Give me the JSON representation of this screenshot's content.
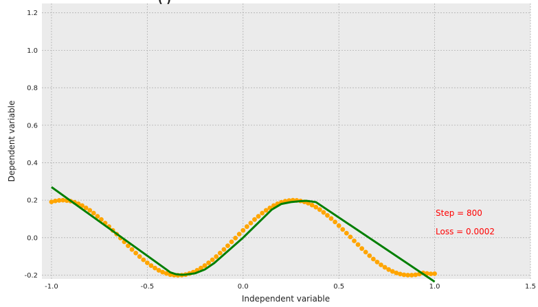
{
  "chart_data": {
    "type": "scatter",
    "title_fragment": "(     )",
    "xlabel": "Independent variable",
    "ylabel": "Dependent variable",
    "xlim": [
      -1.05,
      1.5
    ],
    "ylim": [
      -0.22,
      1.25
    ],
    "xticks": [
      "-1.0",
      "-0.5",
      "0.0",
      "0.5",
      "1.0",
      "1.5"
    ],
    "yticks": [
      "-0.2",
      "0.0",
      "0.2",
      "0.4",
      "0.6",
      "0.8",
      "1.0",
      "1.2"
    ],
    "grid": true,
    "colors": {
      "background": "#ebebeb",
      "scatter": "#ffa500",
      "line": "#007f00",
      "annotation": "#ff0000"
    },
    "series": [
      {
        "kind": "scatter",
        "points_x": [
          -1.0,
          -0.98,
          -0.96,
          -0.94,
          -0.92,
          -0.9,
          -0.88,
          -0.86,
          -0.84,
          -0.82,
          -0.8,
          -0.78,
          -0.76,
          -0.74,
          -0.72,
          -0.7,
          -0.68,
          -0.66,
          -0.64,
          -0.62,
          -0.6,
          -0.58,
          -0.56,
          -0.54,
          -0.52,
          -0.5,
          -0.48,
          -0.46,
          -0.44,
          -0.42,
          -0.4,
          -0.38,
          -0.36,
          -0.34,
          -0.32,
          -0.3,
          -0.28,
          -0.26,
          -0.24,
          -0.22,
          -0.2,
          -0.18,
          -0.16,
          -0.14,
          -0.12,
          -0.1,
          -0.08,
          -0.06,
          -0.04,
          -0.02,
          0.0,
          0.02,
          0.04,
          0.06,
          0.08,
          0.1,
          0.12,
          0.14,
          0.16,
          0.18,
          0.2,
          0.22,
          0.24,
          0.26,
          0.28,
          0.3,
          0.32,
          0.34,
          0.36,
          0.38,
          0.4,
          0.42,
          0.44,
          0.46,
          0.48,
          0.5,
          0.52,
          0.54,
          0.56,
          0.58,
          0.6,
          0.62,
          0.64,
          0.66,
          0.68,
          0.7,
          0.72,
          0.74,
          0.76,
          0.78,
          0.8,
          0.82,
          0.84,
          0.86,
          0.88,
          0.9,
          0.92,
          0.94,
          0.96,
          0.98,
          1.0
        ],
        "points_y": [
          0.191,
          0.196,
          0.199,
          0.2,
          0.198,
          0.195,
          0.189,
          0.181,
          0.171,
          0.159,
          0.146,
          0.131,
          0.114,
          0.097,
          0.078,
          0.059,
          0.039,
          0.019,
          -0.002,
          -0.022,
          -0.043,
          -0.063,
          -0.082,
          -0.101,
          -0.118,
          -0.134,
          -0.149,
          -0.162,
          -0.174,
          -0.184,
          -0.191,
          -0.197,
          -0.2,
          -0.201,
          -0.2,
          -0.197,
          -0.191,
          -0.184,
          -0.174,
          -0.162,
          -0.149,
          -0.134,
          -0.118,
          -0.101,
          -0.082,
          -0.063,
          -0.043,
          -0.022,
          -0.002,
          0.019,
          0.039,
          0.059,
          0.078,
          0.097,
          0.114,
          0.131,
          0.146,
          0.159,
          0.171,
          0.181,
          0.189,
          0.195,
          0.198,
          0.2,
          0.199,
          0.196,
          0.191,
          0.184,
          0.174,
          0.163,
          0.15,
          0.135,
          0.119,
          0.102,
          0.084,
          0.064,
          0.044,
          0.024,
          0.004,
          -0.017,
          -0.037,
          -0.058,
          -0.077,
          -0.096,
          -0.114,
          -0.13,
          -0.145,
          -0.158,
          -0.17,
          -0.18,
          -0.188,
          -0.194,
          -0.198,
          -0.2,
          -0.2,
          -0.198,
          -0.194,
          -0.188,
          -0.191,
          -0.193,
          -0.192
        ]
      },
      {
        "kind": "line",
        "x": [
          -1.0,
          -0.4,
          -0.38,
          -0.35,
          -0.32,
          -0.3,
          -0.25,
          -0.2,
          -0.15,
          0.0,
          0.15,
          0.2,
          0.25,
          0.3,
          0.33,
          0.38,
          1.0
        ],
        "y": [
          0.27,
          -0.17,
          -0.185,
          -0.195,
          -0.198,
          -0.197,
          -0.19,
          -0.17,
          -0.135,
          0.0,
          0.15,
          0.18,
          0.19,
          0.195,
          0.197,
          0.19,
          -0.235
        ]
      }
    ],
    "annotations": [
      "Step = 800",
      "Loss = 0.0002"
    ]
  }
}
